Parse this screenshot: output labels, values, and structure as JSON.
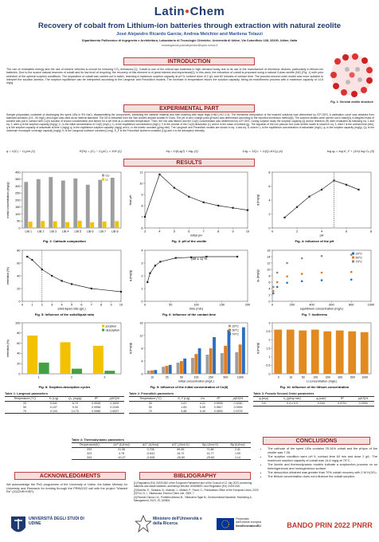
{
  "header": {
    "logo_left": "Latin",
    "logo_right": "Chem",
    "title": "Recovery of cobalt from Lithium-ion batteries through extraction with natural zeolite",
    "authors": "José Alejandro Ricardo García; Andrea Melchior and Marilena Tolazzi",
    "affiliation": "Dipartimento Politecnico di Ingegneria e Architettura, Laboratorio di Tecnologie Chimiche, Università di Udine, Via Cotonificio 108, 33100, Udine, Italia",
    "email": "ricardogarcia.josealejandro@spes.uniud.it"
  },
  "headings": {
    "introduction": "INTRODUCTION",
    "experimental": "EXPERIMENTAL PART",
    "results": "RESULTS",
    "conclusions": "CONCLUSIONS",
    "acknowledgments": "ACKNOWLEDGMENTS",
    "bibliography": "BIBLIOGRAPHY"
  },
  "introduction": "The use of renewable energy and the use of electric vehicles is crucial for reducing CO₂ emissions [1]. Cobalt is one of the critical raw materials in high demand today due to its use in the manufacture of electronic devices, particularly in lithium-ion batteries. Due to the scarce natural reserves of cobalt and its low level of recycling, the recovery of this element is of great interest and importance[2]. In this work, the extraction of cobalt is proposed using a natural Cuban zeolite (NZ) (Fig. 1) with prior selection of the optimal sorption conditions. The separation of cobalt was carried out in batch, reaching a maximum sorption capacity at pH 5, sorbent dose of 2 g/L and 60 minutes of contact time. The pseudo-second order model was more suitable to interpret the sorption kinetics. The sorption equilibrium can be interpreted according to the Langmuir and Freundlich models. The increase in temperature favors the sorption capacity, being an endothermic process with a maximum capacity of 14.6 mg/g.",
  "fig1_caption": "Fig. 1: General zeolite structure",
  "experimental": "Sample preparation consisted of discharging the spent LIBs in 5% NaCl, disassembling the components, extracting the cathode material and then leaching with aqua regia (HNO₃:HCl 1:3). The elemental composition of the leached solutions was determined by ICP-OES. A calibration curve was obtained from standard solutions (0.5 - 50 mg/L) and Argon was used as an internal standard. The NZ is extracted from the San Andrés deposit located in Cuba. The pH of zero charge point (pHpzc) was determined according to the reported immersion method[3]. The sorption studies were carried out in batch[4]. A weighed mass of sorbent was put in contact with Co(II) solution of known concentration and stirred for a set time at a controlled temperature. Then, the mix was filtered and the Co(II) concentration was determined by ICP-OES. During sorption study the sorption capacity (q) and/or retention (R) were evaluated by following eq. 1 and eq. 2, were q is the sorption capacity (mg/g); C₀ is the initial concentration of Co(II) (mg/L); Cₑ is the equilibrium concentration (mg/L); V is the volume of the Co(II) dissolution (L) and m is the mass of sorbent (g). The equation of the non pseudo 2nd order kinetic model is shown in eq. 3, were t is the contact time (min), q is the sorption capacity of adsorbate at time t (mg/g) qₑ is the equilibrium sorption capacity (mg/g) and k₂ is the kinetic constant (g/mg·min). The Langmuir and Freundlich models are shown in eq. 4 and eq. 5, where Cₑ is the equilibrium concentration of adsorbate (mg/L), qₑ is the sorption capacity (mg/g), Qₘ is the maximum monolayer coverage capacity (mg/g), Kₗ is the Langmuir isotherm constant (L/mg), K_F is the Freundlich isotherm constant (L/g) and n is the adsorption intensity.",
  "equations": [
    "q = V(C₀ − Cₑ)/m   (1)",
    "R(%) = (C₀ − Cₑ)/C₀ × 100   (2)",
    "t/q = 1/(k₂qₑ²) + t/qₑ   (3)",
    "1/qₑ = 1/Qₘ + 1/(QₘKₗCₑ)   (4)",
    "log qₑ = log K_F + (1/n) log Cₑ   (5)"
  ],
  "figures": [
    {
      "type": "bar",
      "caption": "Fig. 2: Cathode composition",
      "ylabel": "metal concentration (mg/g)",
      "categories": [
        "LIB 1",
        "LIB 2",
        "LIB 3",
        "LIB 4",
        "LIB 5",
        "LIB 6",
        "LIB 7",
        "LIB 8"
      ],
      "series": [
        {
          "name": "Co",
          "color": "#9e9e9e",
          "values": [
            330,
            350,
            365,
            340,
            355,
            310,
            345,
            360
          ]
        },
        {
          "name": "Li",
          "color": "#f2c200",
          "values": [
            45,
            50,
            48,
            42,
            52,
            40,
            46,
            49
          ]
        }
      ],
      "ylim": [
        0,
        400
      ],
      "yticks": [
        0,
        50,
        100,
        150,
        200,
        250,
        300,
        350,
        400
      ]
    },
    {
      "type": "line",
      "caption": "Fig. 3: pH of the zeolite",
      "xlabel": "initial pH",
      "ylabel": "final pH",
      "x": [
        3,
        4,
        5,
        6,
        7,
        8,
        9,
        10
      ],
      "series": [
        {
          "name": "pH",
          "color": "#222",
          "values": [
            7.0,
            10.8,
            9.6,
            8.8,
            8.3,
            8.0,
            7.8,
            7.6
          ]
        }
      ],
      "xlim": [
        3,
        10
      ],
      "xticks": [
        3,
        4,
        5,
        6,
        7,
        8,
        9,
        10
      ],
      "ylim": [
        6,
        11
      ],
      "yticks": [
        6,
        7,
        8,
        9,
        10,
        11
      ]
    },
    {
      "type": "line",
      "caption": "Fig. 4: Influence of the pH",
      "xlabel": "pH",
      "ylabel": "q (mg/g)",
      "x": [
        1,
        2,
        3,
        4,
        5,
        6,
        7
      ],
      "series": [
        {
          "name": "q",
          "color": "#222",
          "values": [
            1.5,
            3.0,
            4.5,
            5.5,
            6.8,
            6.2,
            5.5
          ]
        }
      ],
      "vline": 5,
      "xlim": [
        0,
        8
      ],
      "xticks": [
        0,
        2,
        4,
        6,
        8
      ],
      "ylim": [
        0,
        8
      ],
      "yticks": [
        0,
        2,
        4,
        6,
        8
      ]
    },
    {
      "type": "line",
      "caption": "Fig. 5: Influence of the solid/liquid ratio",
      "xlabel": "solid-liquid ratio (g/L)",
      "ylabel": "retention (%)",
      "x": [
        0.5,
        1,
        2,
        3,
        4,
        5,
        7,
        10
      ],
      "series": [
        {
          "name": "R",
          "color": "#222",
          "values": [
            70,
            65,
            50,
            40,
            32,
            27,
            20,
            15
          ]
        }
      ],
      "vline": 2,
      "xlim": [
        0,
        10
      ],
      "xticks": [
        0,
        1,
        2,
        3,
        4,
        5,
        6,
        7,
        8,
        9,
        10
      ],
      "ylim": [
        0,
        80
      ],
      "yticks": [
        0,
        20,
        40,
        60,
        80
      ]
    },
    {
      "type": "line",
      "caption": "Fig. 6: Influence of the contact time",
      "xlabel": "time (min)",
      "ylabel": "q (mg/g)",
      "x": [
        5,
        10,
        20,
        30,
        60,
        90,
        120,
        180
      ],
      "series": [
        {
          "name": "q",
          "color": "#222",
          "values": [
            1.5,
            2.2,
            2.8,
            3.1,
            3.4,
            3.45,
            3.5,
            3.5
          ]
        }
      ],
      "annotation": "(59 ± 1) %",
      "xlim": [
        0,
        200
      ],
      "xticks": [
        0,
        50,
        100,
        150,
        200
      ],
      "ylim": [
        0,
        4
      ],
      "yticks": [
        0,
        1,
        2,
        3,
        4
      ]
    },
    {
      "type": "scatter",
      "caption": "Fig. 7: Isotherms",
      "xlabel": "equilibrium concentration (mg/L)",
      "ylabel": "qₑ (mg/g)",
      "series": [
        {
          "name": "20°C",
          "color": "#2e6fbd",
          "x": [
            10,
            50,
            150,
            300,
            500,
            800
          ],
          "values": [
            2.5,
            4.5,
            5.8,
            6.3,
            6.6,
            6.8
          ]
        },
        {
          "name": "50°C",
          "color": "#e07b1f",
          "x": [
            10,
            50,
            150,
            300,
            500,
            800
          ],
          "values": [
            3.2,
            6.0,
            7.8,
            8.6,
            9.0,
            9.2
          ]
        },
        {
          "name": "70°C",
          "color": "#8a8a8a",
          "x": [
            10,
            50,
            150,
            300,
            500,
            800
          ],
          "values": [
            4.5,
            9.0,
            12.0,
            13.5,
            14.2,
            14.6
          ]
        }
      ],
      "xlim": [
        0,
        1000
      ],
      "xticks": [
        0,
        200,
        400,
        600,
        800,
        1000
      ],
      "ylim": [
        0,
        16
      ],
      "yticks": [
        0,
        2,
        4,
        6,
        8,
        10,
        12,
        14,
        16
      ]
    },
    {
      "type": "bar",
      "caption": "Fig. 8: Sorption-desorption cycles",
      "ylabel": "retention (%)",
      "categories": [
        "1",
        "2",
        "3"
      ],
      "series": [
        {
          "name": "sorption",
          "color": "#f2c200",
          "values": [
            75,
            62,
            55
          ]
        },
        {
          "name": "desorption",
          "color": "#43a047",
          "values": [
            22,
            10,
            6
          ]
        }
      ],
      "ylim": [
        0,
        100
      ],
      "yticks": [
        0,
        20,
        40,
        60,
        80,
        100
      ]
    },
    {
      "type": "bar",
      "caption": "Fig. 9: Influence of the initial concentration of Co(II)",
      "xlabel": "initial concentration (mg/L)",
      "ylabel": "q (mg/g)",
      "categories": [
        "10",
        "25",
        "50",
        "100",
        "250",
        "500",
        "1000"
      ],
      "series": [
        {
          "name": "20°C",
          "color": "#9e9e9e",
          "values": [
            1.0,
            2.2,
            3.5,
            5.0,
            6.0,
            6.5,
            6.8
          ]
        },
        {
          "name": "50°C",
          "color": "#e07b1f",
          "values": [
            1.1,
            2.5,
            4.0,
            6.2,
            8.0,
            8.8,
            9.2
          ]
        },
        {
          "name": "70°C",
          "color": "#2e6fbd",
          "values": [
            1.2,
            2.8,
            4.8,
            8.0,
            11.5,
            13.8,
            14.6
          ]
        }
      ],
      "ylim": [
        0,
        16
      ],
      "yticks": [
        0,
        4,
        8,
        12,
        16
      ]
    },
    {
      "type": "bar",
      "caption": "Fig. 10: Influence of the lithium concentration",
      "xlabel": "Li concentration (mg/L)",
      "ylabel": "q (mg/g)",
      "categories": [
        "0",
        "10",
        "50",
        "100",
        "200",
        "300",
        "500",
        "1000"
      ],
      "series": [
        {
          "name": "q",
          "color": "#e08a1f",
          "values": [
            2.6,
            2.6,
            2.55,
            2.6,
            2.5,
            2.55,
            2.5,
            2.45
          ]
        }
      ],
      "ylim": [
        0,
        3
      ],
      "yticks": [
        0,
        0.5,
        1,
        1.5,
        2,
        2.5,
        3
      ]
    }
  ],
  "tables": [
    {
      "title": "Table 1: Langmuir parameters",
      "headers": [
        "Temperature (°C)",
        "Kₗ (L/g)",
        "Qₘ (mg/g)",
        "R²",
        "p(KS)%"
      ],
      "rows": [
        [
          "20",
          "0.041",
          "6.79",
          "0.9935",
          "0.3929"
        ],
        [
          "50",
          "0.107",
          "9.33",
          "0.9956",
          "0.2246"
        ],
        [
          "70",
          "0.194",
          "14.75",
          "0.9986",
          "0.6537"
        ]
      ]
    },
    {
      "title": "Table 2: Freundlich parameters",
      "headers": [
        "Temperature (°C)",
        "K_F (L/g)",
        "1/n",
        "R²",
        "p(KS)%"
      ],
      "rows": [
        [
          "20",
          "1.67",
          "4.21",
          "0.9930",
          "0.3240"
        ],
        [
          "50",
          "1.83",
          "5.55",
          "0.9817",
          "0.0559"
        ],
        [
          "70",
          "5.88",
          "0.40",
          "0.9893",
          "0.5709"
        ]
      ]
    },
    {
      "title": "Table 3: Pseudo Second Order parameters",
      "headers": [
        "qₑ(exp)",
        "k₂ (g/mg·min)",
        "qₑ(calc)",
        "R²",
        "p(KS)%"
      ],
      "rows": [
        [
          "3.6",
          "0.4 ± 0.3",
          "0.044",
          "0.9791",
          "0.2909"
        ]
      ]
    },
    {
      "title": "Table 4: Thermodynamic parameters",
      "headers": [
        "Temperature(K)",
        "ΔH° (kJ/mol)",
        "ΔG° (kJ/mol)",
        "ΔS° (J/mol K)",
        "Bg (J/mol K)",
        "Bg (kJ/mol)"
      ],
      "rows": [
        [
          "293",
          "21.06",
          "0.706",
          "69.45",
          "71.86",
          "2.41"
        ],
        [
          "323",
          "4.78",
          "-0.631",
          "16.72",
          "14.77",
          "1.90"
        ],
        [
          "343",
          "-10.27",
          "-0.528",
          "-26.60",
          "-29.84",
          "1.14"
        ]
      ]
    }
  ],
  "conclusions": [
    "The cathode of the spent LIBs contains 25-34% cobalt and the pHpzc of the zeolite was 7.06.",
    "The sorption condition were pH 5, contact time 60 min and dose 2 g/L. The maximum sorption capacity of cobalt was 14.6 mg/g at 70°C.",
    "The kinetic and thermodynamic models indicate a sorption/ion process on an heterogeneous and homogeneous surface.",
    "The desorption obtained was greater than 70% cobalt recovery with 2 M H₂SO₄.",
    "The lithium concentration does not influence the cobalt sorption."
  ],
  "acknowledgments": "We acknowledge the PhD programme of the University of Udine, the Italian Ministry for University and Research for funding through the PRIN2022 call with the project \"Wasted Re\" (2022HRYHSP).",
  "bibliography": [
    "[1] Regulation (EU) 2023/1542 of the European Parliament and of the Council of 12 July 2023 concerning batteries and waste batteries, amending Directive 2008/98/EC and Regulation (EU) 2019/1020.",
    "[2] Botelho, E., Santana, B., Mulinari, J., Mattioli, P., Favet, O., Publications Office of the European Union, 2020.",
    "[3] Fiol, N., I. Villaescusa, Environ Chem Lett, 2009, 7.",
    "[4] Ricardo García J.A., Portieles Alfonso M., Villanueva Tagle M., Environmental Nanotech. Monitoring & Management, 2023, 19, 100804."
  ],
  "footer": {
    "university": "UNIVERSITÀ DEGLI STUDI DI UDINE",
    "ministry": "Ministero dell'Università e della Ricerca",
    "eu_line1": "Finanziato",
    "eu_line2": "dall'Unione europea",
    "eu_line3": "NextGenerationEU",
    "prin": "BANDO PRIN 2022 PNRR"
  }
}
